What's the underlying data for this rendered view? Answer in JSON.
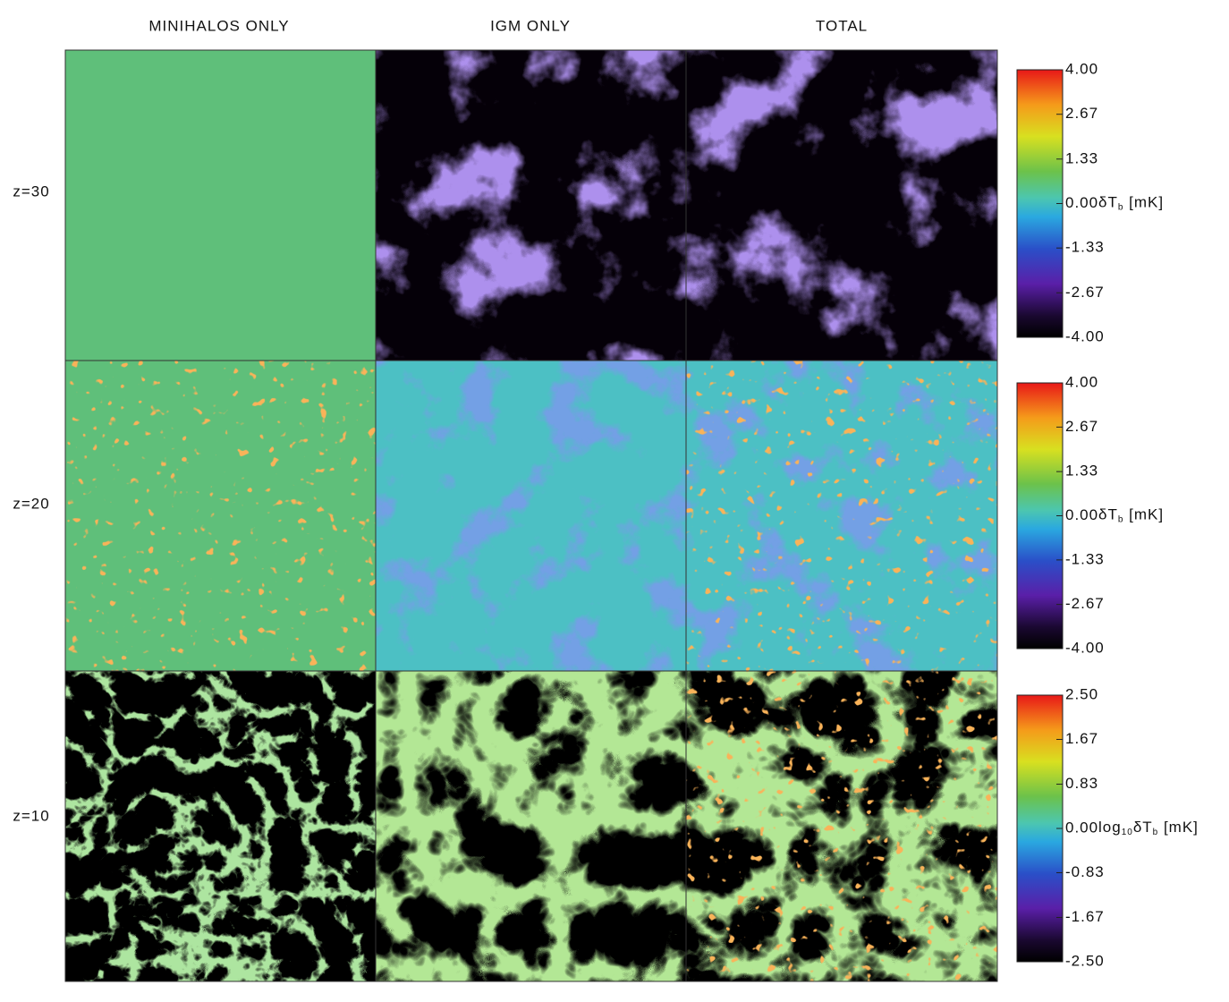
{
  "columns": [
    "MINIHALOS ONLY",
    "IGM ONLY",
    "TOTAL"
  ],
  "rows": [
    "z=30",
    "z=20",
    "z=10"
  ],
  "colorbars": [
    {
      "ticks": [
        {
          "value": -4,
          "label": "-4.00"
        },
        {
          "value": -2.67,
          "label": "-2.67"
        },
        {
          "value": -1.33,
          "label": "-1.33"
        },
        {
          "value": 0,
          "label": "0.00"
        },
        {
          "value": 1.33,
          "label": "1.33"
        },
        {
          "value": 2.67,
          "label": "2.67"
        },
        {
          "value": 4,
          "label": "4.00"
        }
      ],
      "label": [
        {
          "text": "δT"
        },
        {
          "text": "b",
          "sub": true
        },
        {
          "text": " [mK]"
        }
      ]
    },
    {
      "ticks": [
        {
          "value": -4,
          "label": "-4.00"
        },
        {
          "value": -2.67,
          "label": "-2.67"
        },
        {
          "value": -1.33,
          "label": "-1.33"
        },
        {
          "value": 0,
          "label": "0.00"
        },
        {
          "value": 1.33,
          "label": "1.33"
        },
        {
          "value": 2.67,
          "label": "2.67"
        },
        {
          "value": 4,
          "label": "4.00"
        }
      ],
      "label": [
        {
          "text": "δT"
        },
        {
          "text": "b",
          "sub": true
        },
        {
          "text": " [mK]"
        }
      ]
    },
    {
      "ticks": [
        {
          "value": -2.5,
          "label": "-2.50"
        },
        {
          "value": -1.67,
          "label": "-1.67"
        },
        {
          "value": -0.83,
          "label": "-0.83"
        },
        {
          "value": 0,
          "label": "0.00"
        },
        {
          "value": 0.83,
          "label": "0.83"
        },
        {
          "value": 1.67,
          "label": "1.67"
        },
        {
          "value": 2.5,
          "label": "2.50"
        }
      ],
      "label": [
        {
          "text": "log"
        },
        {
          "text": "10",
          "sub": true
        },
        {
          "text": "δT"
        },
        {
          "text": "b",
          "sub": true
        },
        {
          "text": " [mK]"
        }
      ]
    }
  ]
}
